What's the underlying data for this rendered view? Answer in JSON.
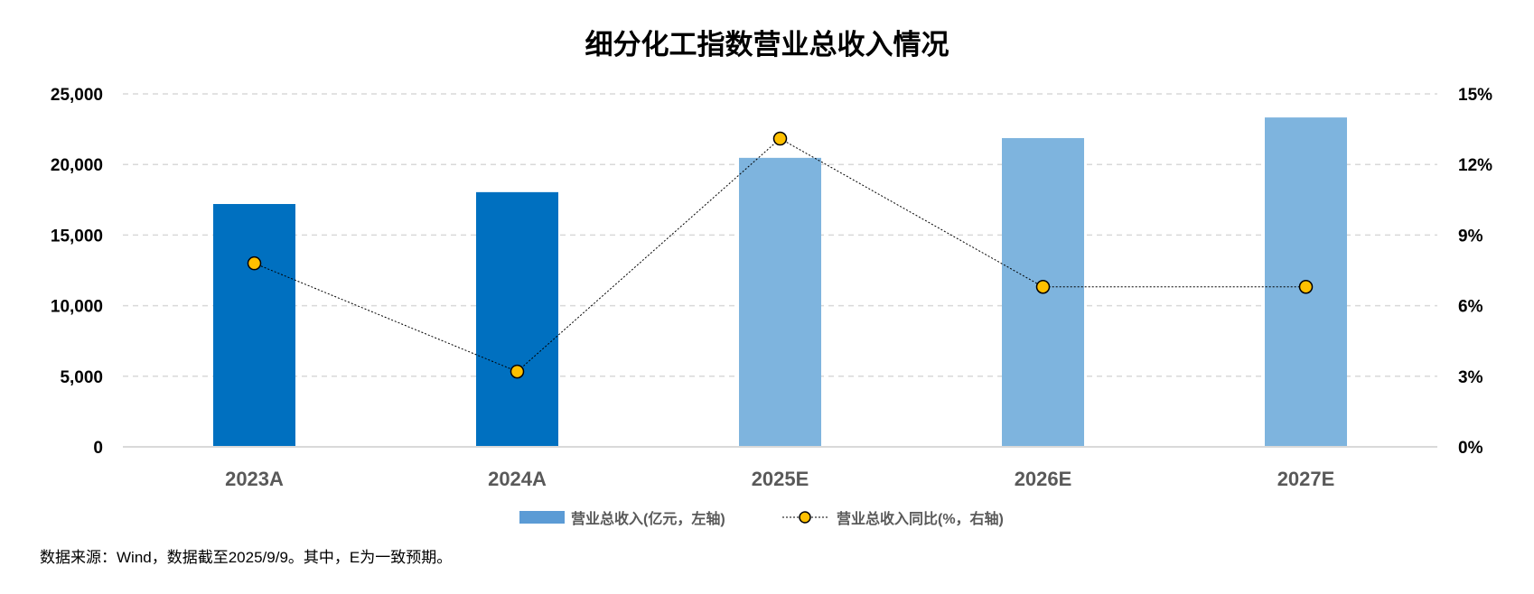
{
  "chart_data": {
    "type": "bar",
    "title": "细分化工指数营业总收入情况",
    "categories": [
      "2023A",
      "2024A",
      "2025E",
      "2026E",
      "2027E"
    ],
    "series": [
      {
        "name": "营业总收入(亿元，左轴)",
        "type": "bar",
        "axis": "left",
        "values": [
          17200,
          18040,
          20470,
          21870,
          23330
        ],
        "colors": [
          "#0070C0",
          "#0070C0",
          "#7EB4DE",
          "#7EB4DE",
          "#7EB4DE"
        ]
      },
      {
        "name": "营业总收入同比(%，右轴)",
        "type": "line",
        "axis": "right",
        "values": [
          7.8,
          3.2,
          13.1,
          6.8,
          6.8
        ],
        "color": "#FFC000"
      }
    ],
    "y_left": {
      "ylim": [
        0,
        25000
      ],
      "ticks": [
        "0",
        "5,000",
        "10,000",
        "15,000",
        "20,000",
        "25,000"
      ],
      "tick_values": [
        0,
        5000,
        10000,
        15000,
        20000,
        25000
      ]
    },
    "y_right": {
      "ylim": [
        0,
        15
      ],
      "ticks": [
        "0%",
        "3%",
        "6%",
        "9%",
        "12%",
        "15%"
      ],
      "tick_values": [
        0,
        3,
        6,
        9,
        12,
        15
      ]
    },
    "grid": true,
    "legend_position": "bottom",
    "legend_swatch_color": "#5B9BD5",
    "xlabel": "",
    "ylabel": ""
  },
  "footnote": "数据来源：Wind，数据截至2025/9/9。其中，E为一致预期。"
}
